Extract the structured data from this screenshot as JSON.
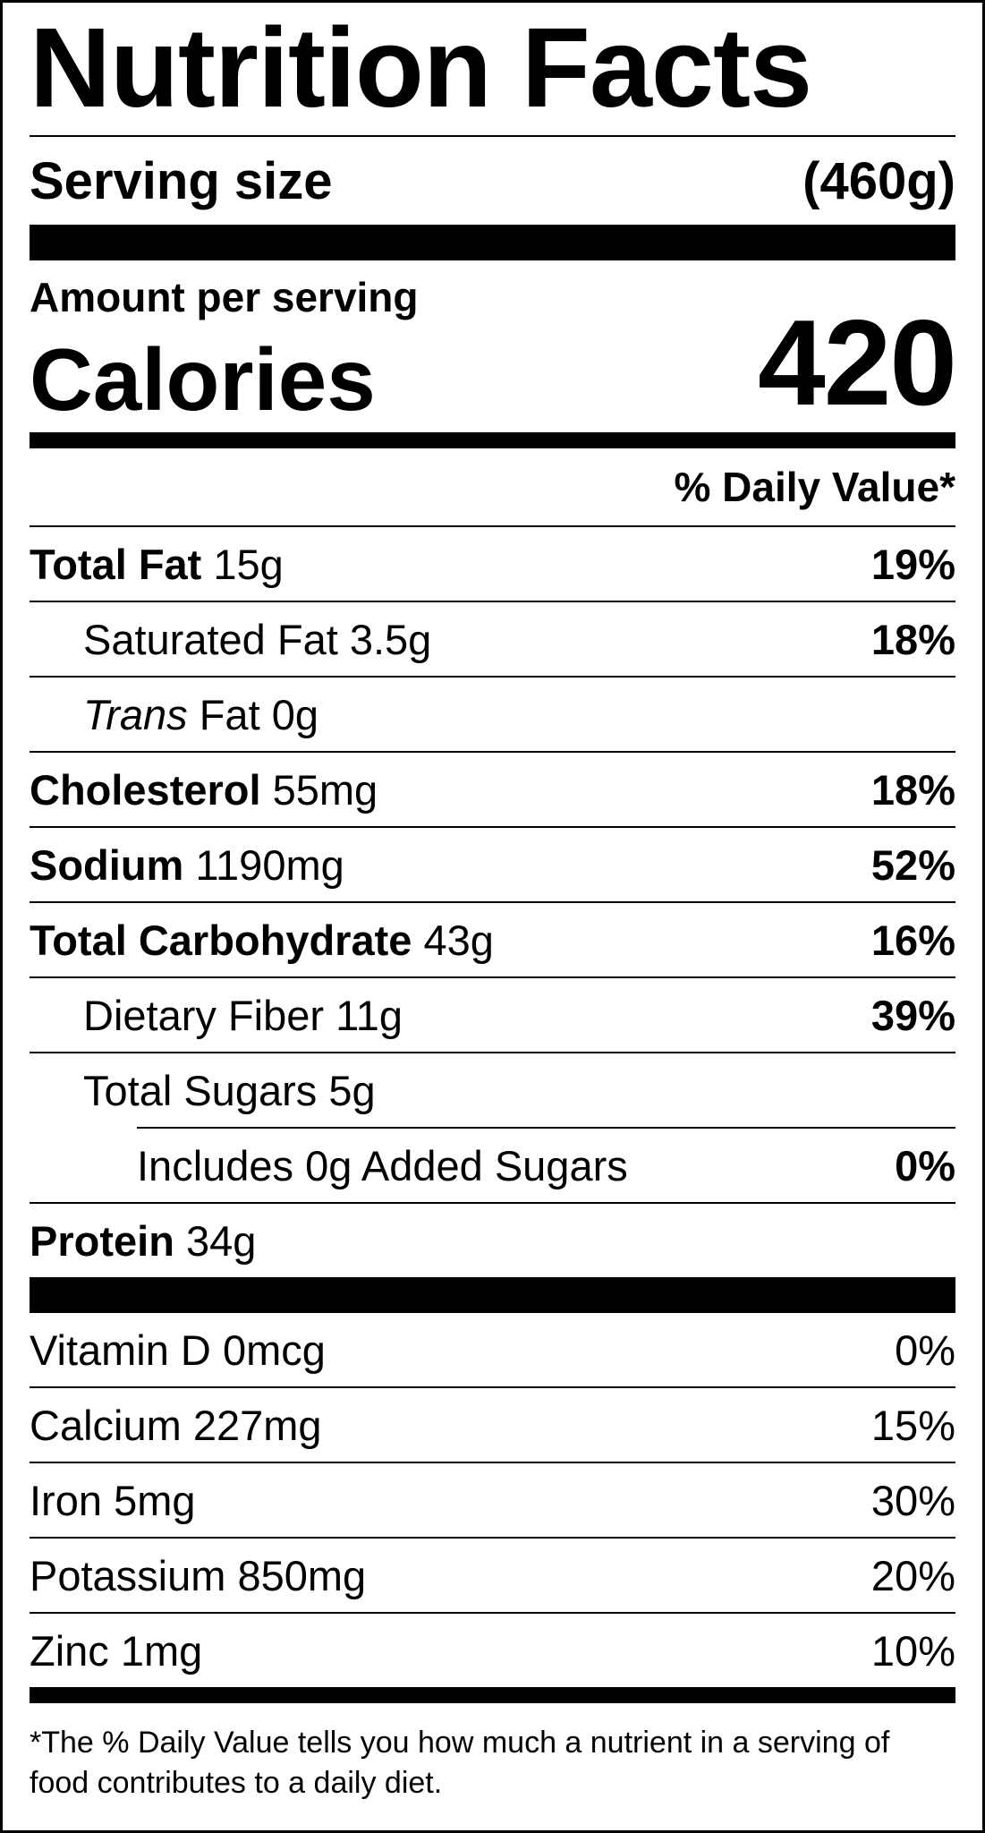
{
  "title": "Nutrition Facts",
  "serving": {
    "label": "Serving size",
    "value": "(460g)"
  },
  "amount_per_serving": "Amount per serving",
  "calories": {
    "label": "Calories",
    "value": "420"
  },
  "daily_value_header": "% Daily Value*",
  "nutrients": [
    {
      "name": "Total Fat",
      "amount": "15g",
      "dv": "19%"
    },
    {
      "name": "Saturated Fat",
      "amount": "3.5g",
      "dv": "18%"
    },
    {
      "name_italic": "Trans",
      "name": "Fat",
      "amount": "0g",
      "dv": ""
    },
    {
      "name": "Cholesterol",
      "amount": "55mg",
      "dv": "18%"
    },
    {
      "name": "Sodium",
      "amount": "1190mg",
      "dv": "52%"
    },
    {
      "name": "Total Carbohydrate",
      "amount": "43g",
      "dv": "16%"
    },
    {
      "name": "Dietary Fiber",
      "amount": "11g",
      "dv": "39%"
    },
    {
      "name": "Total Sugars",
      "amount": "5g",
      "dv": ""
    },
    {
      "name": "Includes 0g Added Sugars",
      "amount": "",
      "dv": "0%"
    },
    {
      "name": "Protein",
      "amount": "34g",
      "dv": ""
    }
  ],
  "micronutrients": [
    {
      "name": "Vitamin D",
      "amount": "0mcg",
      "dv": "0%"
    },
    {
      "name": "Calcium",
      "amount": "227mg",
      "dv": "15%"
    },
    {
      "name": "Iron",
      "amount": "5mg",
      "dv": "30%"
    },
    {
      "name": "Potassium",
      "amount": "850mg",
      "dv": "20%"
    },
    {
      "name": "Zinc",
      "amount": "1mg",
      "dv": "10%"
    }
  ],
  "footnote": "*The % Daily Value tells you how much a nutrient in a serving of food contributes to a daily diet."
}
